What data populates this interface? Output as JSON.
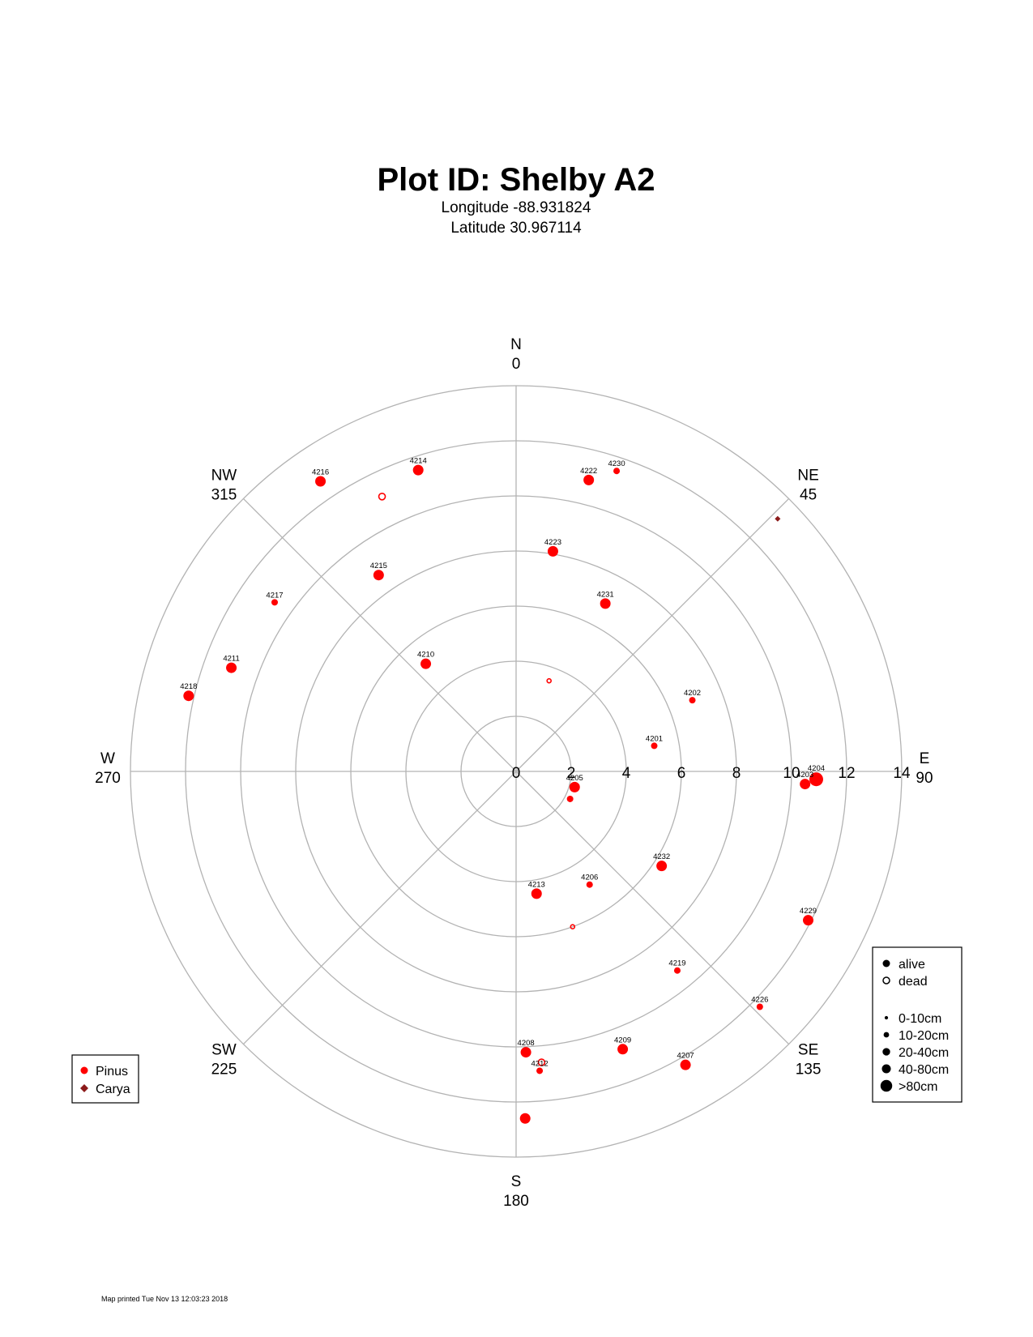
{
  "chart_data": {
    "type": "scatter",
    "projection": "polar",
    "title": "Plot ID:  Shelby A2",
    "subtitle_lines": [
      "Longitude -88.931824",
      "Latitude 30.967114"
    ],
    "radial_axis": {
      "range": [
        0,
        14
      ],
      "ticks": [
        "0",
        "2",
        "4",
        "6",
        "8",
        "10",
        "12",
        "14"
      ]
    },
    "directions": [
      {
        "name": "N",
        "azimuth": "0",
        "deg": 0
      },
      {
        "name": "NE",
        "azimuth": "45",
        "deg": 45
      },
      {
        "name": "E",
        "azimuth": "90",
        "deg": 90
      },
      {
        "name": "SE",
        "azimuth": "135",
        "deg": 135
      },
      {
        "name": "S",
        "azimuth": "180",
        "deg": 180
      },
      {
        "name": "SW",
        "azimuth": "225",
        "deg": 225
      },
      {
        "name": "W",
        "azimuth": "270",
        "deg": 270
      },
      {
        "name": "NW",
        "azimuth": "315",
        "deg": 315
      }
    ],
    "grid": true,
    "colors": {
      "grid": "#b3b3b3",
      "pinus": "#ff0000",
      "carya": "#8b1a1a"
    },
    "trees": [
      {
        "label": "4230",
        "azimuth": 18.5,
        "distance": 11.5,
        "species": "Pinus",
        "status": "alive",
        "size": 1
      },
      {
        "label": "4222",
        "azimuth": 14.0,
        "distance": 10.9,
        "species": "Pinus",
        "status": "alive",
        "size": 3
      },
      {
        "label": "4223",
        "azimuth": 9.5,
        "distance": 8.1,
        "species": "Pinus",
        "status": "alive",
        "size": 3
      },
      {
        "label": "4231",
        "azimuth": 28.0,
        "distance": 6.9,
        "species": "Pinus",
        "status": "alive",
        "size": 3
      },
      {
        "label": "",
        "azimuth": 20.0,
        "distance": 3.5,
        "species": "Pinus",
        "status": "dead",
        "size": 0
      },
      {
        "label": "",
        "azimuth": 46.0,
        "distance": 13.2,
        "species": "Carya",
        "status": "alive",
        "size": 0
      },
      {
        "label": "4202",
        "azimuth": 68.0,
        "distance": 6.9,
        "species": "Pinus",
        "status": "alive",
        "size": 1
      },
      {
        "label": "4201",
        "azimuth": 79.5,
        "distance": 5.1,
        "species": "Pinus",
        "status": "alive",
        "size": 1
      },
      {
        "label": "4204",
        "azimuth": 91.5,
        "distance": 10.9,
        "species": "Pinus",
        "status": "alive",
        "size": 4
      },
      {
        "label": "4203",
        "azimuth": 92.5,
        "distance": 10.5,
        "species": "Pinus",
        "status": "alive",
        "size": 3
      },
      {
        "label": "4205",
        "azimuth": 105.0,
        "distance": 2.2,
        "species": "Pinus",
        "status": "alive",
        "size": 3
      },
      {
        "label": "",
        "azimuth": 117.0,
        "distance": 2.2,
        "species": "Pinus",
        "status": "alive",
        "size": 1
      },
      {
        "label": "4232",
        "azimuth": 123.0,
        "distance": 6.3,
        "species": "Pinus",
        "status": "alive",
        "size": 3
      },
      {
        "label": "4206",
        "azimuth": 147.0,
        "distance": 4.9,
        "species": "Pinus",
        "status": "alive",
        "size": 1
      },
      {
        "label": "4213",
        "azimuth": 170.5,
        "distance": 4.5,
        "species": "Pinus",
        "status": "alive",
        "size": 3
      },
      {
        "label": "",
        "azimuth": 160.0,
        "distance": 6.0,
        "species": "Pinus",
        "status": "dead",
        "size": 0
      },
      {
        "label": "4229",
        "azimuth": 117.0,
        "distance": 11.9,
        "species": "Pinus",
        "status": "alive",
        "size": 3
      },
      {
        "label": "4219",
        "azimuth": 141.0,
        "distance": 9.3,
        "species": "Pinus",
        "status": "alive",
        "size": 1
      },
      {
        "label": "4226",
        "azimuth": 134.0,
        "distance": 12.3,
        "species": "Pinus",
        "status": "alive",
        "size": 1
      },
      {
        "label": "4209",
        "azimuth": 159.0,
        "distance": 10.8,
        "species": "Pinus",
        "status": "alive",
        "size": 3
      },
      {
        "label": "4207",
        "azimuth": 150.0,
        "distance": 12.3,
        "species": "Pinus",
        "status": "alive",
        "size": 3
      },
      {
        "label": "4208",
        "azimuth": 178.0,
        "distance": 10.2,
        "species": "Pinus",
        "status": "alive",
        "size": 3
      },
      {
        "label": "",
        "azimuth": 175.0,
        "distance": 10.6,
        "species": "Pinus",
        "status": "dead",
        "size": 1
      },
      {
        "label": "4212",
        "azimuth": 175.5,
        "distance": 10.9,
        "species": "Pinus",
        "status": "alive",
        "size": 1
      },
      {
        "label": "",
        "azimuth": 178.5,
        "distance": 12.6,
        "species": "Pinus",
        "status": "alive",
        "size": 3
      },
      {
        "label": "4210",
        "azimuth": 320.0,
        "distance": 5.1,
        "species": "Pinus",
        "status": "alive",
        "size": 3
      },
      {
        "label": "4215",
        "azimuth": 325.0,
        "distance": 8.7,
        "species": "Pinus",
        "status": "alive",
        "size": 3
      },
      {
        "label": "4214",
        "azimuth": 342.0,
        "distance": 11.5,
        "species": "Pinus",
        "status": "alive",
        "size": 3
      },
      {
        "label": "",
        "azimuth": 334.0,
        "distance": 11.1,
        "species": "Pinus",
        "status": "dead",
        "size": 1
      },
      {
        "label": "4216",
        "azimuth": 326.0,
        "distance": 12.7,
        "species": "Pinus",
        "status": "alive",
        "size": 3
      },
      {
        "label": "4217",
        "azimuth": 305.0,
        "distance": 10.7,
        "species": "Pinus",
        "status": "alive",
        "size": 1
      },
      {
        "label": "4211",
        "azimuth": 290.0,
        "distance": 11.0,
        "species": "Pinus",
        "status": "alive",
        "size": 3
      },
      {
        "label": "4218",
        "azimuth": 283.0,
        "distance": 12.2,
        "species": "Pinus",
        "status": "alive",
        "size": 3
      }
    ],
    "species_legend": {
      "placement": "bottom-left",
      "items": [
        {
          "label": "Pinus",
          "marker": "circle",
          "color": "#ff0000"
        },
        {
          "label": "Carya",
          "marker": "diamond",
          "color": "#8b1a1a"
        }
      ]
    },
    "status_legend": {
      "placement": "bottom-right",
      "items": [
        {
          "label": "alive",
          "marker": "filled"
        },
        {
          "label": "dead",
          "marker": "open"
        }
      ],
      "size_items": [
        {
          "label": "0-10cm",
          "size": 0
        },
        {
          "label": "10-20cm",
          "size": 1
        },
        {
          "label": "20-40cm",
          "size": 2
        },
        {
          "label": "40-80cm",
          "size": 3
        },
        {
          "label": ">80cm",
          "size": 4
        }
      ]
    }
  },
  "footer": {
    "printed": "Map printed Tue Nov 13 12:03:23 2018"
  }
}
